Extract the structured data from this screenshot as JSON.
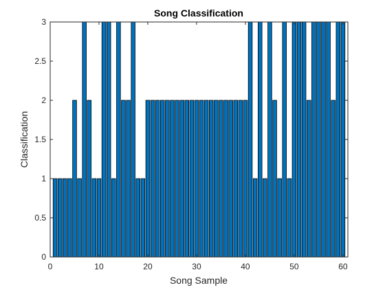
{
  "chart_data": {
    "type": "bar",
    "title": "Song Classification",
    "xlabel": "Song Sample",
    "ylabel": "Classification",
    "xlim": [
      0,
      61
    ],
    "ylim": [
      0,
      3
    ],
    "xticks": [
      0,
      10,
      20,
      30,
      40,
      50,
      60
    ],
    "xtick_labels": [
      "0",
      "10",
      "20",
      "30",
      "40",
      "50",
      "60"
    ],
    "yticks": [
      0,
      0.5,
      1,
      1.5,
      2,
      2.5,
      3
    ],
    "ytick_labels": [
      "0",
      "0.5",
      "1",
      "1.5",
      "2",
      "2.5",
      "3"
    ],
    "grid": false,
    "legend": "none",
    "bar_color": "#0072BD",
    "bar_edge_color": "#000000",
    "x": [
      1,
      2,
      3,
      4,
      5,
      6,
      7,
      8,
      9,
      10,
      11,
      12,
      13,
      14,
      15,
      16,
      17,
      18,
      19,
      20,
      21,
      22,
      23,
      24,
      25,
      26,
      27,
      28,
      29,
      30,
      31,
      32,
      33,
      34,
      35,
      36,
      37,
      38,
      39,
      40,
      41,
      42,
      43,
      44,
      45,
      46,
      47,
      48,
      49,
      50,
      51,
      52,
      53,
      54,
      55,
      56,
      57,
      58,
      59,
      60
    ],
    "values": [
      1,
      1,
      1,
      1,
      2,
      1,
      3,
      2,
      1,
      1,
      3,
      3,
      1,
      3,
      2,
      2,
      3,
      1,
      1,
      2,
      2,
      2,
      2,
      2,
      2,
      2,
      2,
      2,
      2,
      2,
      2,
      2,
      2,
      2,
      2,
      2,
      2,
      2,
      2,
      2,
      3,
      1,
      3,
      1,
      3,
      2,
      1,
      3,
      1,
      3,
      3,
      3,
      2,
      3,
      3,
      3,
      3,
      2,
      3,
      3
    ]
  }
}
